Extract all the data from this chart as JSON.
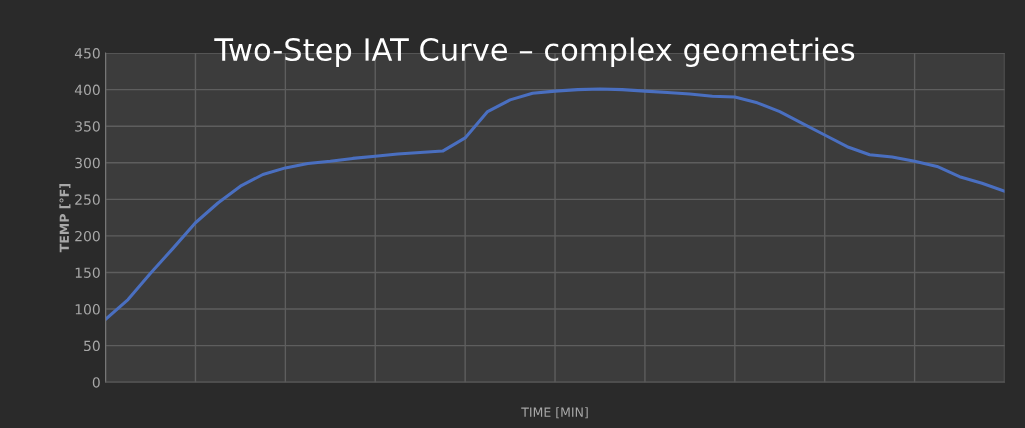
{
  "chart_data": {
    "type": "line",
    "title": "Two-Step IAT Curve – complex geometries",
    "xlabel": "TIME [MIN]",
    "ylabel": "TEMP [°F]",
    "categories": [
      null,
      null,
      null,
      null,
      null,
      null,
      null,
      null,
      null,
      null,
      null,
      null,
      null,
      null,
      null,
      null,
      null,
      null,
      null,
      null,
      null,
      null,
      null,
      null,
      null,
      null,
      null,
      null,
      null,
      null,
      null,
      null,
      null,
      null,
      null,
      null,
      null,
      null,
      null,
      null,
      null
    ],
    "series": [
      {
        "color": "#4a6fc0",
        "values": [
          86,
          113,
          149,
          183,
          218,
          245,
          268,
          284,
          293,
          299,
          302,
          306,
          309,
          312,
          314,
          316,
          334,
          370,
          386,
          395,
          398,
          400,
          401,
          400,
          398,
          396,
          394,
          391,
          390,
          382,
          370,
          354,
          338,
          322,
          311,
          308,
          302,
          295,
          281,
          272,
          261
        ]
      }
    ],
    "ylim": [
      0,
      450
    ],
    "yticks": [
      0,
      50,
      100,
      150,
      200,
      250,
      300,
      350,
      400,
      450
    ],
    "grid": true,
    "tick_labels": "y",
    "marker": "none",
    "line_style": "solid",
    "legend": false
  }
}
